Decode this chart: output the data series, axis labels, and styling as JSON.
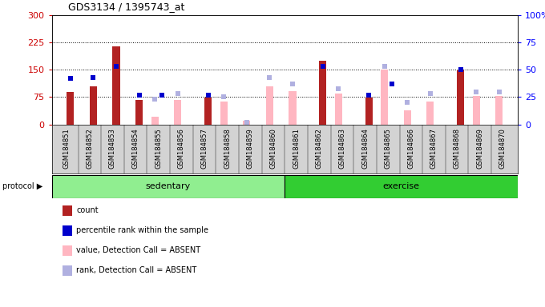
{
  "title": "GDS3134 / 1395743_at",
  "samples": [
    "GSM184851",
    "GSM184852",
    "GSM184853",
    "GSM184854",
    "GSM184855",
    "GSM184856",
    "GSM184857",
    "GSM184858",
    "GSM184859",
    "GSM184860",
    "GSM184861",
    "GSM184862",
    "GSM184863",
    "GSM184864",
    "GSM184865",
    "GSM184866",
    "GSM184867",
    "GSM184868",
    "GSM184869",
    "GSM184870"
  ],
  "count": [
    90,
    105,
    215,
    68,
    null,
    null,
    73,
    null,
    null,
    null,
    null,
    175,
    null,
    73,
    null,
    null,
    null,
    148,
    null,
    null
  ],
  "percentile_rank": [
    42,
    43,
    53,
    27,
    27,
    null,
    27,
    null,
    null,
    null,
    null,
    53,
    null,
    27,
    37,
    null,
    null,
    50,
    null,
    null
  ],
  "value_absent": [
    null,
    null,
    null,
    null,
    22,
    68,
    null,
    62,
    9,
    105,
    92,
    null,
    85,
    null,
    150,
    38,
    62,
    null,
    78,
    78
  ],
  "rank_absent": [
    null,
    null,
    null,
    null,
    23,
    28,
    null,
    25,
    2,
    43,
    37,
    null,
    33,
    null,
    53,
    20,
    28,
    null,
    30,
    30
  ],
  "ylim_left": [
    0,
    300
  ],
  "ylim_right": [
    0,
    100
  ],
  "yticks_left": [
    0,
    75,
    150,
    225,
    300
  ],
  "yticks_right": [
    0,
    25,
    50,
    75,
    100
  ],
  "ytick_labels_left": [
    "0",
    "75",
    "150",
    "225",
    "300"
  ],
  "ytick_labels_right": [
    "0",
    "25",
    "50",
    "75",
    "100%"
  ],
  "hlines": [
    75,
    150,
    225
  ],
  "color_count": "#b22222",
  "color_rank": "#0000cc",
  "color_value_absent": "#ffb6c1",
  "color_rank_absent": "#b0b0e0",
  "bg_sedentary": "#90ee90",
  "bg_exercise": "#32cd32",
  "protocol_label": "protocol ▶",
  "sedentary_label": "sedentary",
  "exercise_label": "exercise",
  "legend_labels": [
    "count",
    "percentile rank within the sample",
    "value, Detection Call = ABSENT",
    "rank, Detection Call = ABSENT"
  ]
}
